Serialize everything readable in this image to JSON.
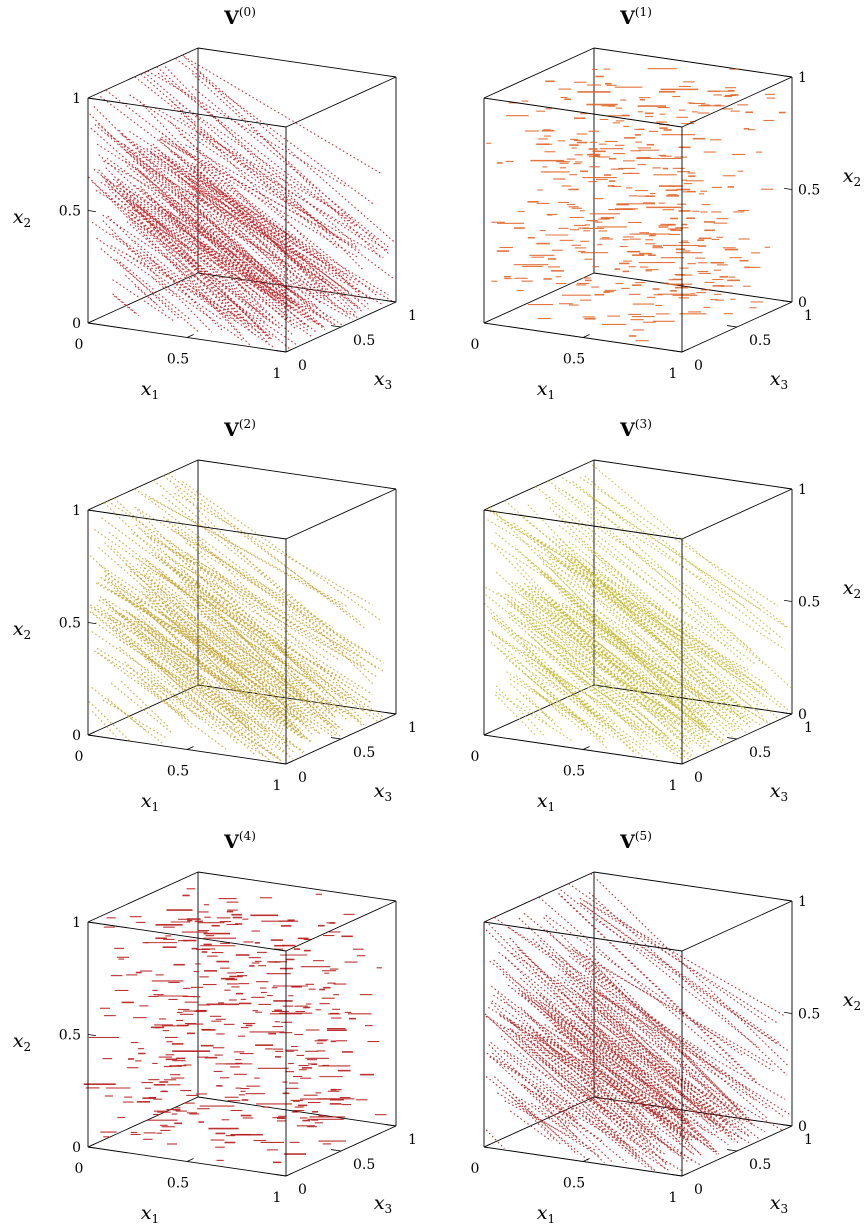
{
  "chart_data": [
    {
      "type": "scatter",
      "title": "V",
      "title_sup": "(0)",
      "xlabel": "x",
      "xlabel_sub": "1",
      "ylabel": "x",
      "ylabel_sub": "3",
      "zlabel": "x",
      "zlabel_sub": "2",
      "xlim": [
        0,
        1
      ],
      "ylim": [
        0,
        1
      ],
      "zlim": [
        0,
        1
      ],
      "x_ticks": [
        "0",
        "0.5",
        "1"
      ],
      "y_ticks": [
        "0",
        "0.5",
        "1"
      ],
      "z_ticks": [
        "0",
        "0.5",
        "1"
      ],
      "z_label_side": "left",
      "color": "#c0282d",
      "pattern": "dense lines descending in x2 as x1 increases"
    },
    {
      "type": "scatter",
      "title": "V",
      "title_sup": "(1)",
      "xlabel": "x",
      "xlabel_sub": "1",
      "ylabel": "x",
      "ylabel_sub": "3",
      "zlabel": "x",
      "zlabel_sub": "2",
      "xlim": [
        0,
        1
      ],
      "ylim": [
        0,
        1
      ],
      "zlim": [
        0,
        1
      ],
      "x_ticks": [
        "0",
        "0.5",
        "1"
      ],
      "y_ticks": [
        "0",
        "0.5",
        "1"
      ],
      "z_ticks": [
        "0",
        "0.5",
        "1"
      ],
      "z_label_side": "right",
      "color": "#e0662a",
      "pattern": "scattered short horizontal segments"
    },
    {
      "type": "scatter",
      "title": "V",
      "title_sup": "(2)",
      "xlabel": "x",
      "xlabel_sub": "1",
      "ylabel": "x",
      "ylabel_sub": "3",
      "zlabel": "x",
      "zlabel_sub": "2",
      "xlim": [
        0,
        1
      ],
      "ylim": [
        0,
        1
      ],
      "zlim": [
        0,
        1
      ],
      "x_ticks": [
        "0",
        "0.5",
        "1"
      ],
      "y_ticks": [
        "0",
        "0.5",
        "1"
      ],
      "z_ticks": [
        "0",
        "0.5",
        "1"
      ],
      "z_label_side": "left",
      "color": "#c8a83a",
      "pattern": "dense lines descending in x2 as x1 increases"
    },
    {
      "type": "scatter",
      "title": "V",
      "title_sup": "(3)",
      "xlabel": "x",
      "xlabel_sub": "1",
      "ylabel": "x",
      "ylabel_sub": "3",
      "zlabel": "x",
      "zlabel_sub": "2",
      "xlim": [
        0,
        1
      ],
      "ylim": [
        0,
        1
      ],
      "zlim": [
        0,
        1
      ],
      "x_ticks": [
        "0",
        "0.5",
        "1"
      ],
      "y_ticks": [
        "0",
        "0.5",
        "1"
      ],
      "z_ticks": [
        "0",
        "0.5",
        "1"
      ],
      "z_label_side": "right",
      "color": "#c9bd3c",
      "pattern": "dense lines descending in x2 as x1 increases"
    },
    {
      "type": "scatter",
      "title": "V",
      "title_sup": "(4)",
      "xlabel": "x",
      "xlabel_sub": "1",
      "ylabel": "x",
      "ylabel_sub": "3",
      "zlabel": "x",
      "zlabel_sub": "2",
      "xlim": [
        0,
        1
      ],
      "ylim": [
        0,
        1
      ],
      "zlim": [
        0,
        1
      ],
      "x_ticks": [
        "0",
        "0.5",
        "1"
      ],
      "y_ticks": [
        "0",
        "0.5",
        "1"
      ],
      "z_ticks": [
        "0",
        "0.5",
        "1"
      ],
      "z_label_side": "left",
      "color": "#b71c1c",
      "pattern": "scattered short horizontal segments"
    },
    {
      "type": "scatter",
      "title": "V",
      "title_sup": "(5)",
      "xlabel": "x",
      "xlabel_sub": "1",
      "ylabel": "x",
      "ylabel_sub": "3",
      "zlabel": "x",
      "zlabel_sub": "2",
      "xlim": [
        0,
        1
      ],
      "ylim": [
        0,
        1
      ],
      "zlim": [
        0,
        1
      ],
      "x_ticks": [
        "0",
        "0.5",
        "1"
      ],
      "y_ticks": [
        "0",
        "0.5",
        "1"
      ],
      "z_ticks": [
        "0",
        "0.5",
        "1"
      ],
      "z_label_side": "right",
      "color": "#b22a2a",
      "pattern": "dense lines descending in x2 as x1 increases"
    }
  ]
}
